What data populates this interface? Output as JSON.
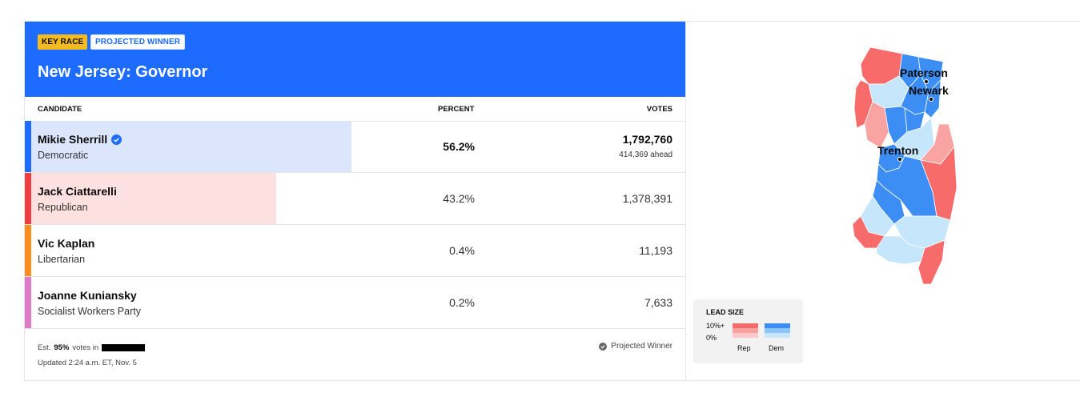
{
  "badges": {
    "key_race": "KEY RACE",
    "projected_winner": "PROJECTED WINNER"
  },
  "race": {
    "title": "New Jersey: Governor"
  },
  "columns": {
    "candidate": "CANDIDATE",
    "percent": "PERCENT",
    "votes": "VOTES"
  },
  "candidates": [
    {
      "name": "Mikie Sherrill",
      "party": "Democratic",
      "percent": "56.2%",
      "votes": "1,792,760",
      "ahead": "414,369 ahead",
      "winner": true,
      "color": "#1e6bff",
      "bar_color": "#dbe6fd",
      "share": 0.562
    },
    {
      "name": "Jack Ciattarelli",
      "party": "Republican",
      "percent": "43.2%",
      "votes": "1,378,391",
      "color": "#ef3d42",
      "bar_color": "#fde0e0",
      "share": 0.432
    },
    {
      "name": "Vic Kaplan",
      "party": "Libertarian",
      "percent": "0.4%",
      "votes": "11,193",
      "color": "#fb8c1e",
      "share": 0.004
    },
    {
      "name": "Joanne Kuniansky",
      "party": "Socialist Workers Party",
      "percent": "0.2%",
      "votes": "7,633",
      "color": "#e07bc7",
      "share": 0.002
    }
  ],
  "footer": {
    "est_prefix": "Est.",
    "est_pct": "95%",
    "est_suffix": "votes in",
    "updated": "Updated 2:24 a.m. ET, Nov. 5",
    "projected_label": "Projected Winner"
  },
  "map": {
    "cities": [
      "Paterson",
      "Newark",
      "Trenton"
    ],
    "colors": {
      "rep_strong": "#f86b6b",
      "rep_light": "#f9a3a3",
      "dem_strong": "#3c8ef5",
      "dem_light": "#c6e6fb"
    }
  },
  "legend": {
    "title": "LEAD SIZE",
    "high": "10%+",
    "low": "0%",
    "rep": "Rep",
    "dem": "Dem",
    "rep_colors": [
      "#f56b6b",
      "#f9a0a0",
      "#fcc8c8"
    ],
    "dem_colors": [
      "#3c8ef5",
      "#8fc4fa",
      "#c6e6fb"
    ]
  }
}
